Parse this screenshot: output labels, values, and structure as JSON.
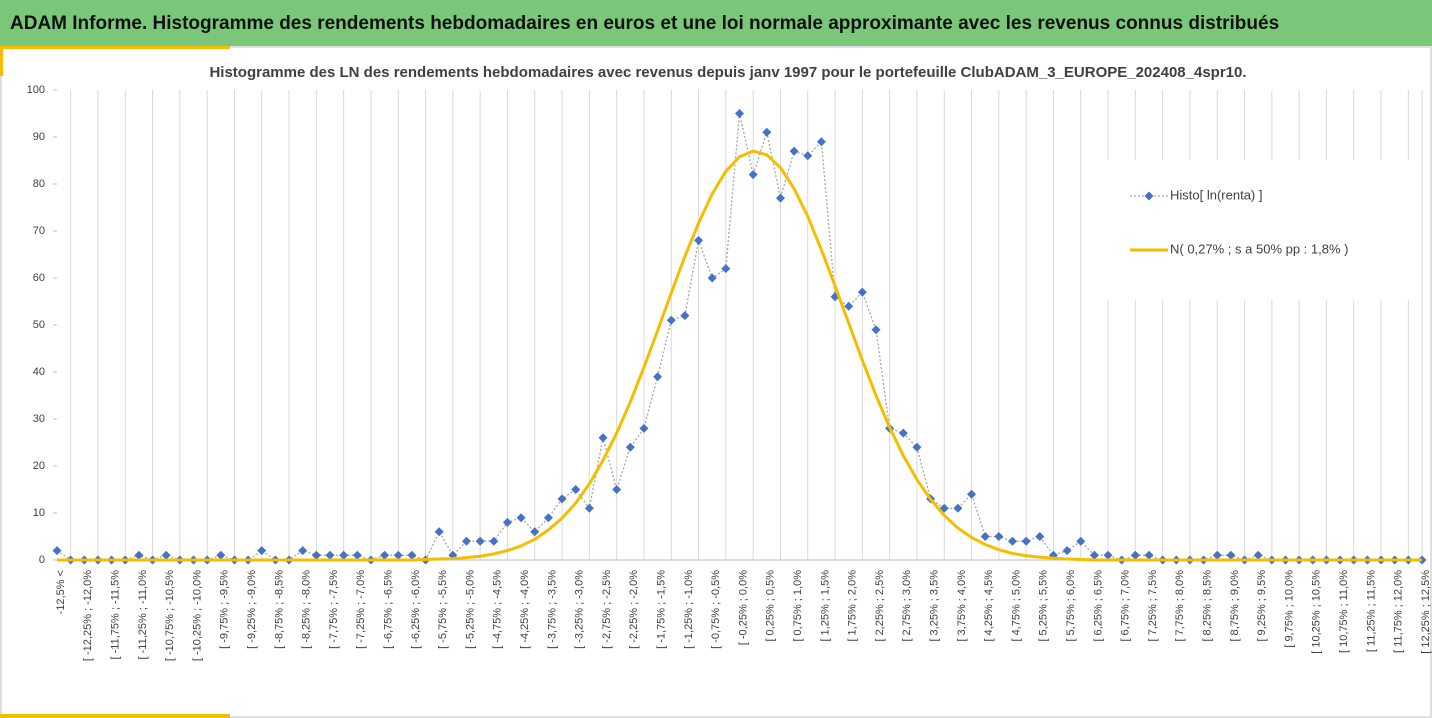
{
  "header": {
    "title": "ADAM Informe. Histogramme des rendements hebdomadaires en euros et une loi normale approximante avec les revenus connus distribués"
  },
  "chart_data": {
    "type": "line",
    "title": "Histogramme des LN des rendements hebdomadaires avec revenus depuis janv 1997 pour le portefeuille ClubADAM_3_EUROPE_202408_4spr10.",
    "categories": [
      "-12,5% <",
      null,
      "[ -12,25% ; -12,0%",
      null,
      "[ -11,75% ; -11,5%",
      null,
      "[ -11,25% ; -11,0%",
      null,
      "[ -10,75% ; -10,5%",
      null,
      "[ -10,25% ; -10,0%",
      null,
      "[ -9,75% ; -9,5%",
      null,
      "[ -9,25% ; -9,0%",
      null,
      "[ -8,75% ; -8,5%",
      null,
      "[ -8,25% ; -8,0%",
      null,
      "[ -7,75% ; -7,5%",
      null,
      "[ -7,25% ; -7,0%",
      null,
      "[ -6,75% ; -6,5%",
      null,
      "[ -6,25% ; -6,0%",
      null,
      "[ -5,75% ; -5,5%",
      null,
      "[ -5,25% ; -5,0%",
      null,
      "[ -4,75% ; -4,5%",
      null,
      "[ -4,25% ; -4,0%",
      null,
      "[ -3,75% ; -3,5%",
      null,
      "[ -3,25% ; -3,0%",
      null,
      "[ -2,75% ; -2,5%",
      null,
      "[ -2,25% ; -2,0%",
      null,
      "[ -1,75% ; -1,5%",
      null,
      "[ -1,25% ; -1,0%",
      null,
      "[ -0,75% ; -0,5%",
      null,
      "[ -0,25% ; 0,0%",
      null,
      "[ 0,25% ; 0,5%",
      null,
      "[ 0,75% ; 1,0%",
      null,
      "[ 1,25% ; 1,5%",
      null,
      "[ 1,75% ; 2,0%",
      null,
      "[ 2,25% ; 2,5%",
      null,
      "[ 2,75% ; 3,0%",
      null,
      "[ 3,25% ; 3,5%",
      null,
      "[ 3,75% ; 4,0%",
      null,
      "[ 4,25% ; 4,5%",
      null,
      "[ 4,75% ; 5,0%",
      null,
      "[ 5,25% ; 5,5%",
      null,
      "[ 5,75% ; 6,0%",
      null,
      "[ 6,25% ; 6,5%",
      null,
      "[ 6,75% ; 7,0%",
      null,
      "[ 7,25% ; 7,5%",
      null,
      "[ 7,75% ; 8,0%",
      null,
      "[ 8,25% ; 8,5%",
      null,
      "[ 8,75% ; 9,0%",
      null,
      "[ 9,25% ; 9,5%",
      null,
      "[ 9,75% ; 10,0%",
      null,
      "[ 10,25% ; 10,5%",
      null,
      "[ 10,75% ; 11,0%",
      null,
      "[ 11,25% ; 11,5%",
      null,
      "[ 11,75% ; 12,0%",
      null,
      "[ 12,25% ; 12,5%"
    ],
    "series": [
      {
        "name": "Histo[ ln(renta) ]",
        "color": "#4472c4",
        "line_color": "#a6a6a6",
        "line_style": "dotted",
        "marker": "diamond",
        "values": [
          2,
          0,
          0,
          0,
          0,
          0,
          1,
          0,
          1,
          0,
          0,
          0,
          1,
          0,
          0,
          2,
          0,
          0,
          2,
          1,
          1,
          1,
          1,
          0,
          1,
          1,
          1,
          0,
          6,
          1,
          4,
          4,
          4,
          8,
          9,
          6,
          9,
          13,
          15,
          11,
          26,
          15,
          24,
          28,
          39,
          51,
          52,
          68,
          60,
          62,
          95,
          82,
          91,
          77,
          87,
          86,
          89,
          56,
          54,
          57,
          49,
          28,
          27,
          24,
          13,
          11,
          11,
          14,
          5,
          5,
          4,
          4,
          5,
          1,
          2,
          4,
          1,
          1,
          0,
          1,
          1,
          0,
          0,
          0,
          0,
          1,
          1,
          0,
          1,
          0,
          0,
          0,
          0,
          0,
          0,
          0,
          0,
          0,
          0,
          0,
          0
        ]
      },
      {
        "name": "N( 0,27% ; s a 50% pp : 1,8% )",
        "color": "#f5bd02",
        "line_style": "solid",
        "marker": "none",
        "values": [
          0,
          0,
          0,
          0,
          0,
          0,
          0,
          0,
          0,
          0,
          0,
          0,
          0,
          0,
          0,
          0,
          0,
          0,
          0,
          0,
          0,
          0,
          0,
          0,
          0,
          0,
          0,
          0.1,
          0.2,
          0.3,
          0.5,
          0.8,
          1.3,
          2.0,
          3.0,
          4.4,
          6.4,
          8.9,
          12.1,
          16.2,
          21.2,
          27.0,
          33.6,
          41.0,
          48.8,
          56.8,
          64.6,
          71.7,
          77.9,
          82.7,
          85.8,
          87.0,
          86.2,
          83.5,
          79.0,
          73.1,
          66.0,
          58.3,
          50.4,
          42.5,
          35.0,
          28.2,
          22.2,
          17.1,
          12.9,
          9.5,
          6.8,
          4.8,
          3.3,
          2.2,
          1.4,
          0.9,
          0.6,
          0.4,
          0.2,
          0.1,
          0,
          0,
          0,
          0,
          0,
          0,
          0,
          0,
          0,
          0,
          0,
          0,
          0,
          0,
          0,
          0,
          0,
          0,
          0,
          0,
          0,
          0,
          0,
          0,
          0
        ]
      }
    ],
    "ylim": [
      0,
      100
    ],
    "yticks": [
      0,
      10,
      20,
      30,
      40,
      50,
      60,
      70,
      80,
      90,
      100
    ],
    "grid": true,
    "legend": "right"
  }
}
